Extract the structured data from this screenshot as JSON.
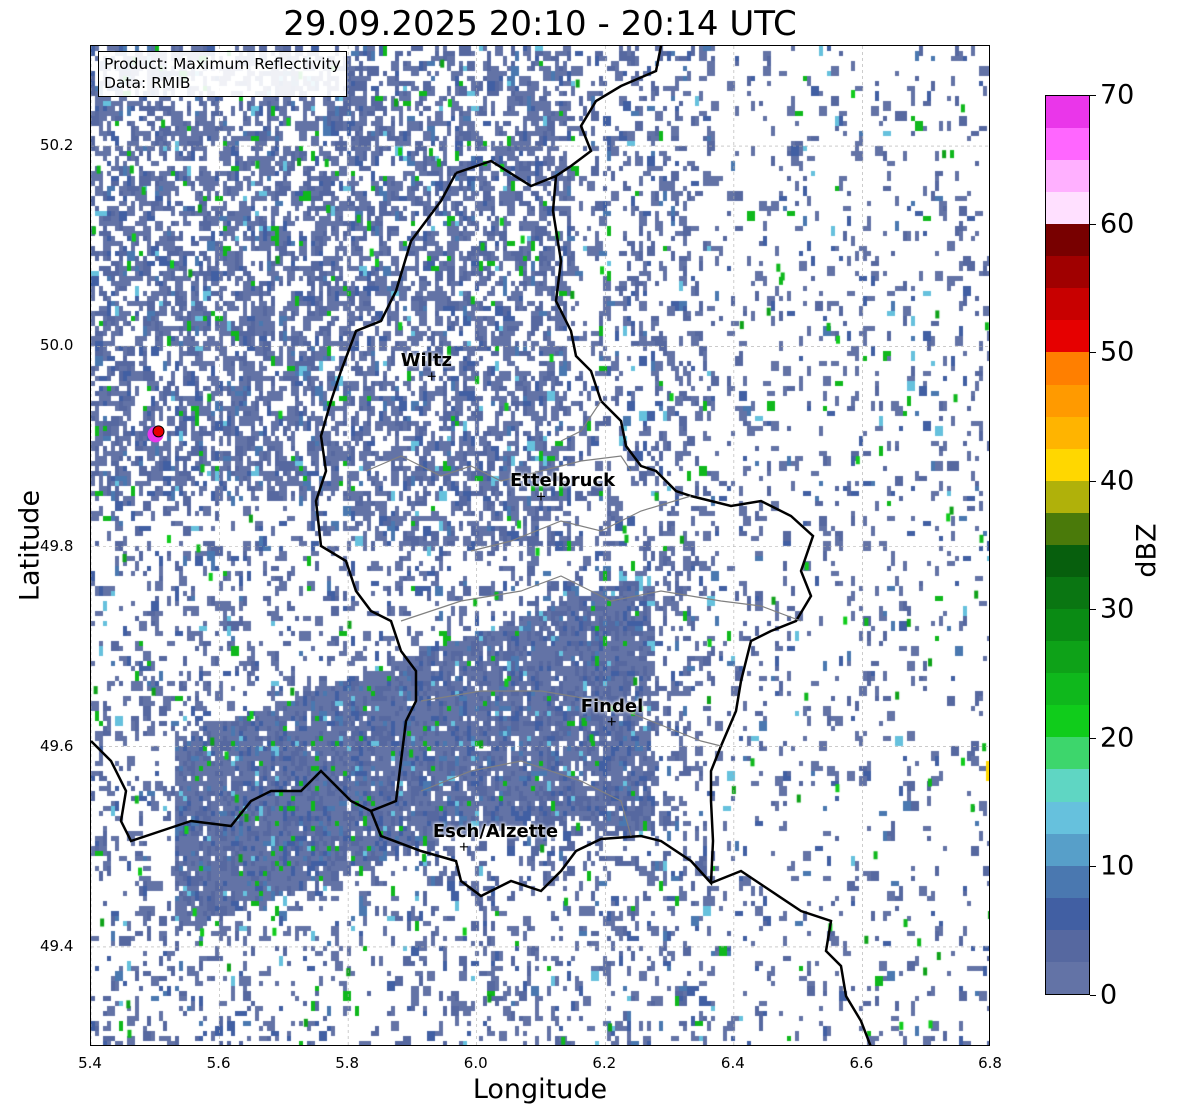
{
  "title": "29.09.2025 20:10 - 20:14 UTC",
  "info_box": {
    "line1": "Product: Maximum Reflectivity",
    "line2": "Data: RMIB"
  },
  "x_axis": {
    "label": "Longitude",
    "range": [
      5.4,
      6.8
    ],
    "ticks": [
      "5.4",
      "5.6",
      "5.8",
      "6.0",
      "6.2",
      "6.4",
      "6.6",
      "6.8"
    ]
  },
  "y_axis": {
    "label": "Latitude",
    "range": [
      49.3,
      50.3
    ],
    "ticks": [
      "49.4",
      "49.6",
      "49.8",
      "50.0",
      "50.2"
    ]
  },
  "cities": [
    {
      "name": "Wiltz",
      "lon": 5.93,
      "lat": 49.97
    },
    {
      "name": "Ettelbruck",
      "lon": 6.1,
      "lat": 49.85
    },
    {
      "name": "Findel",
      "lon": 6.21,
      "lat": 49.625
    },
    {
      "name": "Esch/Alzette",
      "lon": 5.98,
      "lat": 49.5
    }
  ],
  "radar_site": {
    "lon": 5.505,
    "lat": 49.915
  },
  "colorbar": {
    "label": "dBZ",
    "ticks": [
      "0",
      "10",
      "20",
      "30",
      "40",
      "50",
      "60",
      "70"
    ],
    "range": [
      0,
      70
    ],
    "step": 2.5,
    "colors": [
      "#6373a6",
      "#5668a0",
      "#415fa3",
      "#4a78b0",
      "#579fc9",
      "#66c1dd",
      "#5fd6c3",
      "#3dd66c",
      "#10cc1b",
      "#0fb81c",
      "#0ea218",
      "#0a8b14",
      "#0a7612",
      "#075f0d",
      "#4a7a0a",
      "#b0b10a",
      "#ffd700",
      "#ffb400",
      "#ff9a00",
      "#ff7f00",
      "#e60000",
      "#c80000",
      "#a00000",
      "#780000",
      "#ffe0ff",
      "#ffb0ff",
      "#ff66ff",
      "#ea36ea"
    ]
  }
}
